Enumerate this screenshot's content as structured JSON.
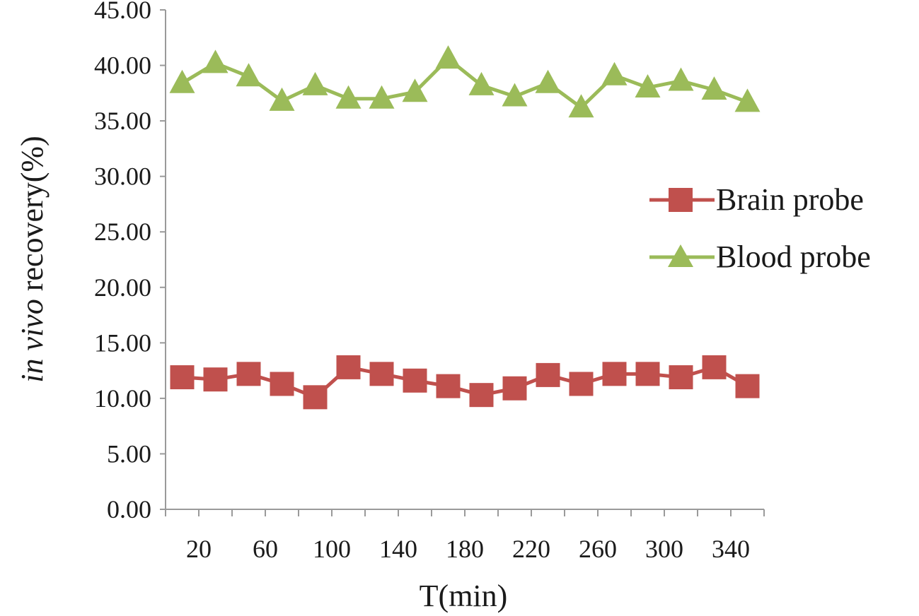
{
  "chart_data": {
    "type": "line",
    "ylabel_italic": "in vivo",
    "ylabel_rest": " recovery(%)",
    "xlabel": "T(min)",
    "ylim": [
      0,
      45
    ],
    "y_ticks": [
      "0.00",
      "5.00",
      "10.00",
      "15.00",
      "20.00",
      "25.00",
      "30.00",
      "35.00",
      "40.00",
      "45.00"
    ],
    "x_tick_labels": [
      "20",
      "60",
      "100",
      "140",
      "180",
      "220",
      "260",
      "300",
      "340"
    ],
    "x": [
      10,
      30,
      50,
      70,
      90,
      110,
      130,
      150,
      170,
      190,
      210,
      230,
      250,
      270,
      290,
      310,
      330,
      350
    ],
    "grid": false,
    "legend_position": "right",
    "series": [
      {
        "name": "Brain probe",
        "color": "#c0504d",
        "marker": "square",
        "values": [
          11.9,
          11.7,
          12.2,
          11.3,
          10.1,
          12.8,
          12.2,
          11.6,
          11.1,
          10.3,
          10.9,
          12.1,
          11.3,
          12.2,
          12.2,
          11.9,
          12.8,
          11.1
        ]
      },
      {
        "name": "Blood probe",
        "color": "#9bbb59",
        "marker": "triangle",
        "values": [
          38.4,
          40.2,
          39.0,
          36.8,
          38.2,
          37.0,
          37.0,
          37.6,
          40.6,
          38.2,
          37.2,
          38.4,
          36.2,
          39.1,
          38.0,
          38.6,
          37.8,
          36.7
        ]
      }
    ]
  }
}
